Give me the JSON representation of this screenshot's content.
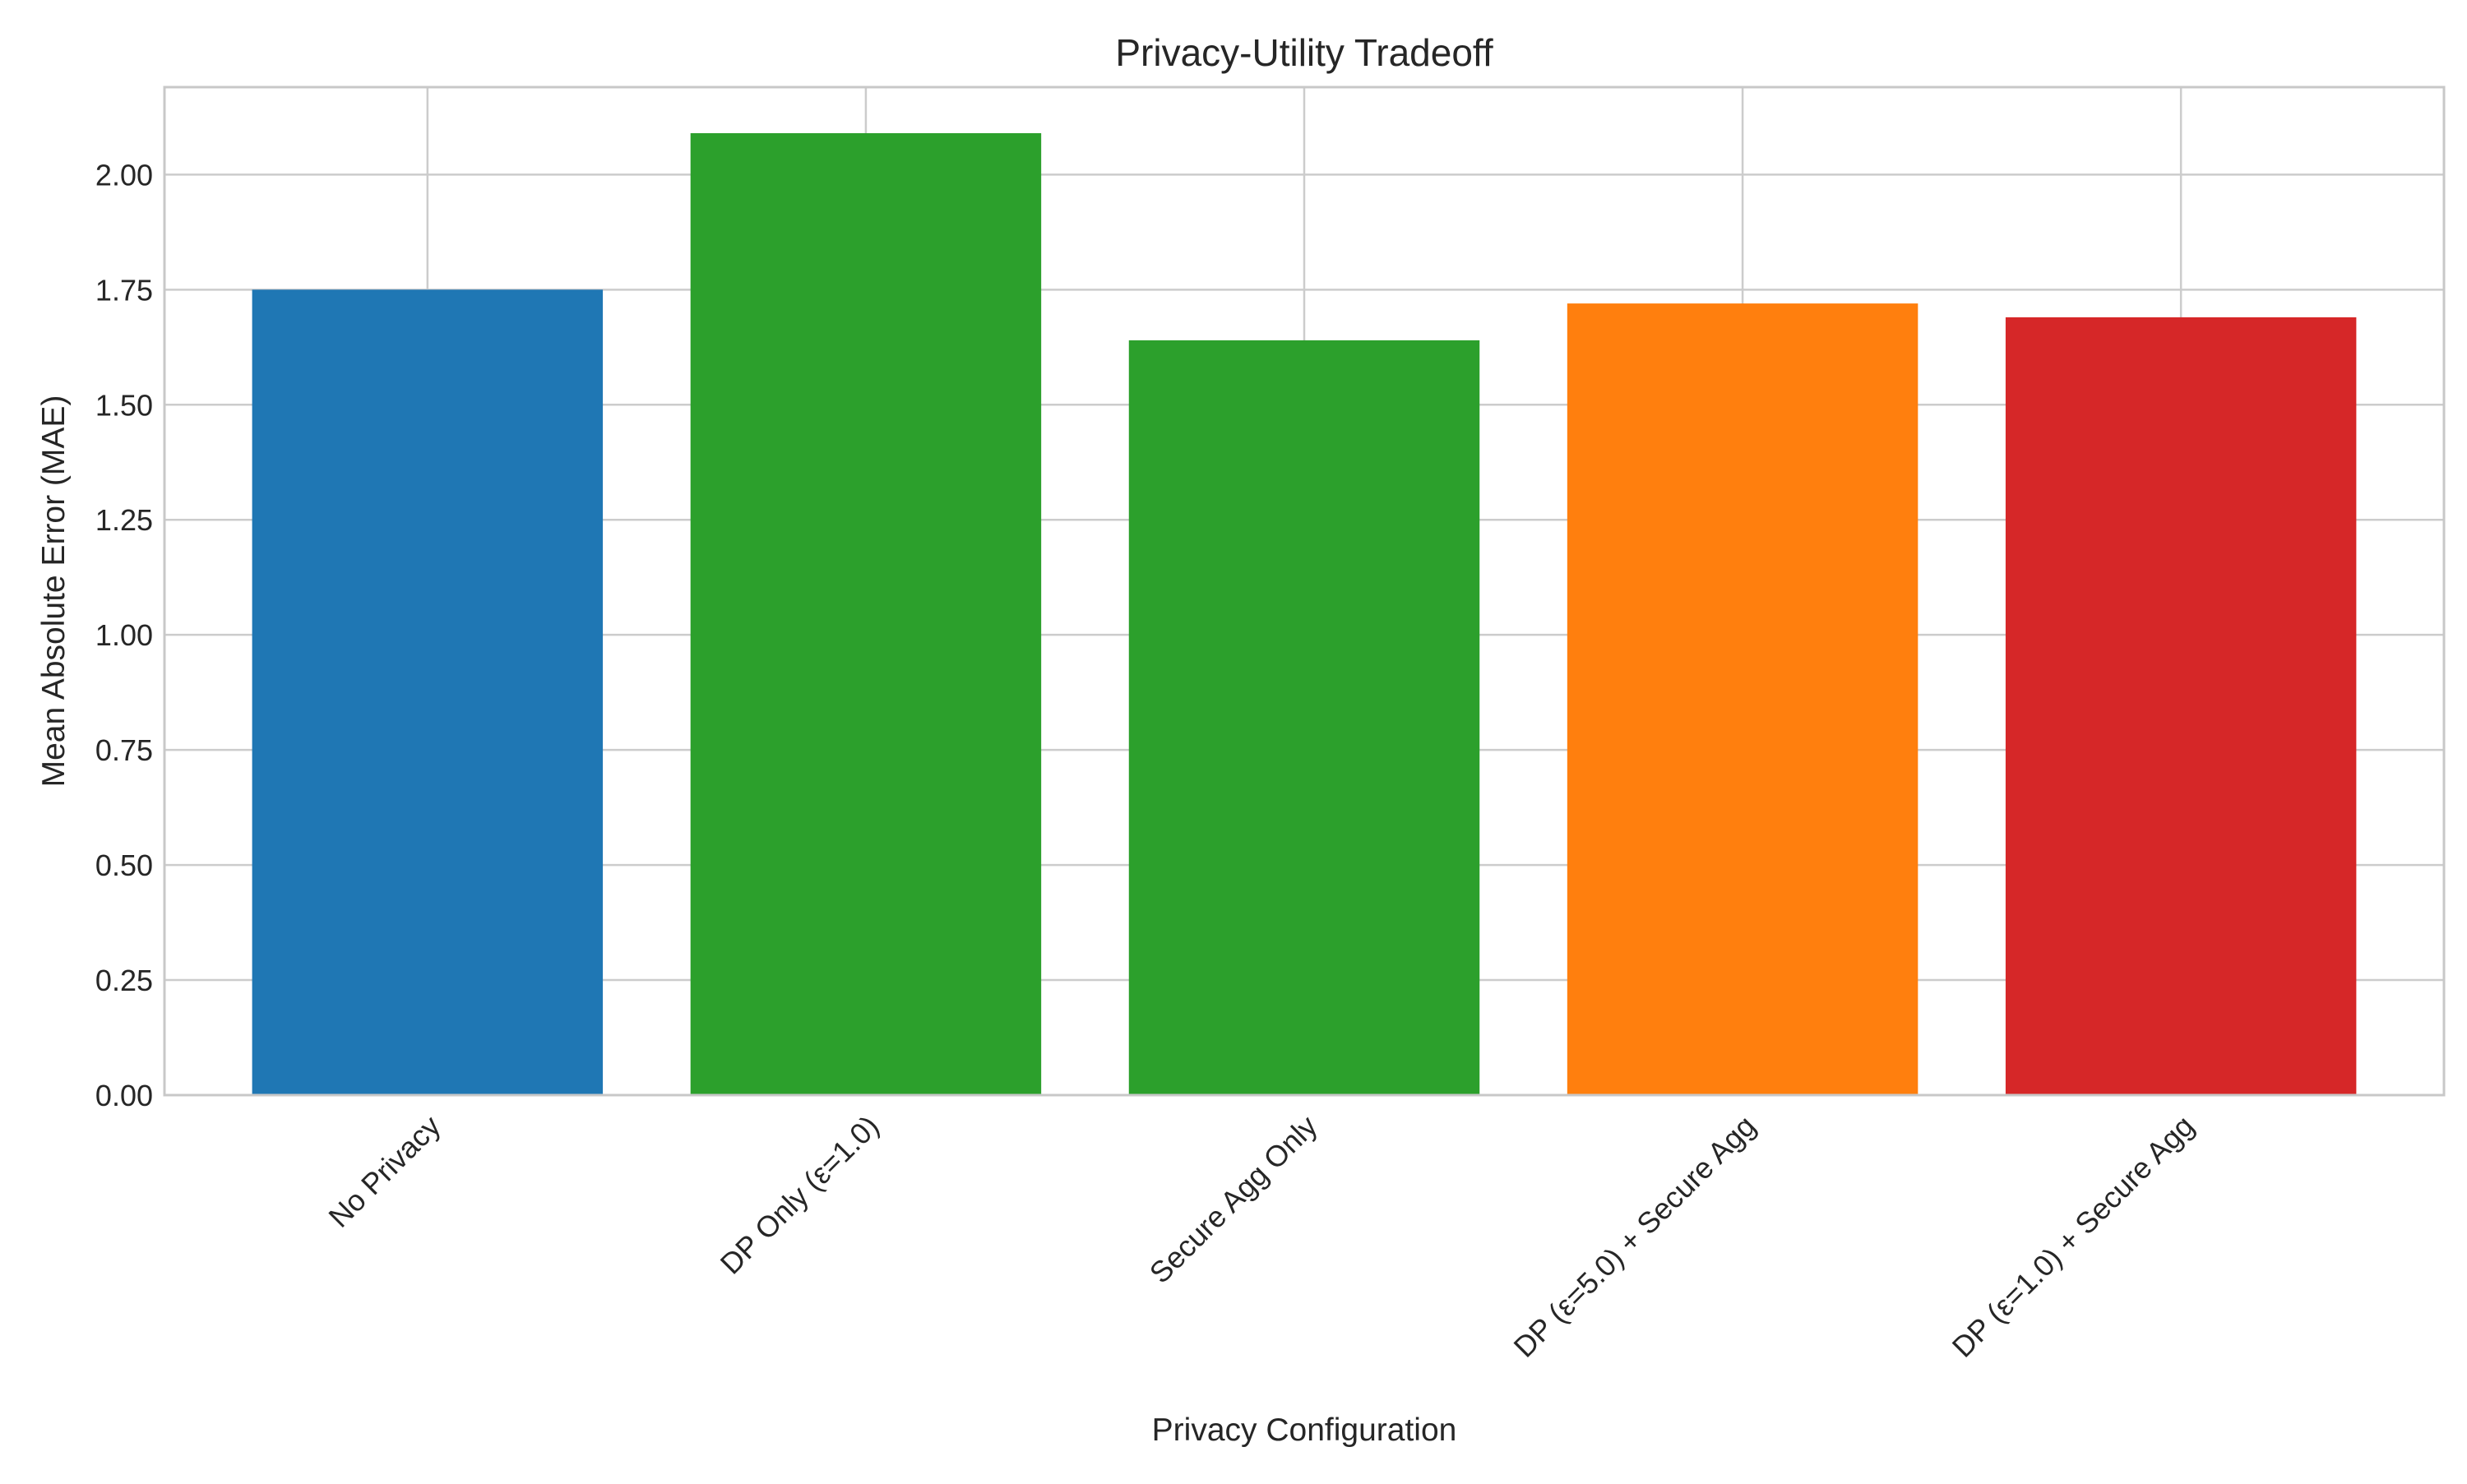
{
  "chart_data": {
    "type": "bar",
    "title": "Privacy-Utility Tradeoff",
    "xlabel": "Privacy Configuration",
    "ylabel": "Mean Absolute Error (MAE)",
    "categories": [
      "No Privacy",
      "DP Only (ε=1.0)",
      "Secure Agg Only",
      "DP (ε=5.0) + Secure Agg",
      "DP (ε=1.0) + Secure Agg"
    ],
    "values": [
      1.75,
      2.09,
      1.64,
      1.72,
      1.69
    ],
    "colors": [
      "#1f77b4",
      "#2ca02c",
      "#2ca02c",
      "#ff7f0e",
      "#d62728"
    ],
    "ylim": [
      0,
      2.19
    ],
    "yticks": [
      0.0,
      0.25,
      0.5,
      0.75,
      1.0,
      1.25,
      1.5,
      1.75,
      2.0
    ],
    "ytick_labels": [
      "0.00",
      "0.25",
      "0.50",
      "0.75",
      "1.00",
      "1.25",
      "1.50",
      "1.75",
      "2.00"
    ],
    "grid": true,
    "legend": "none"
  }
}
